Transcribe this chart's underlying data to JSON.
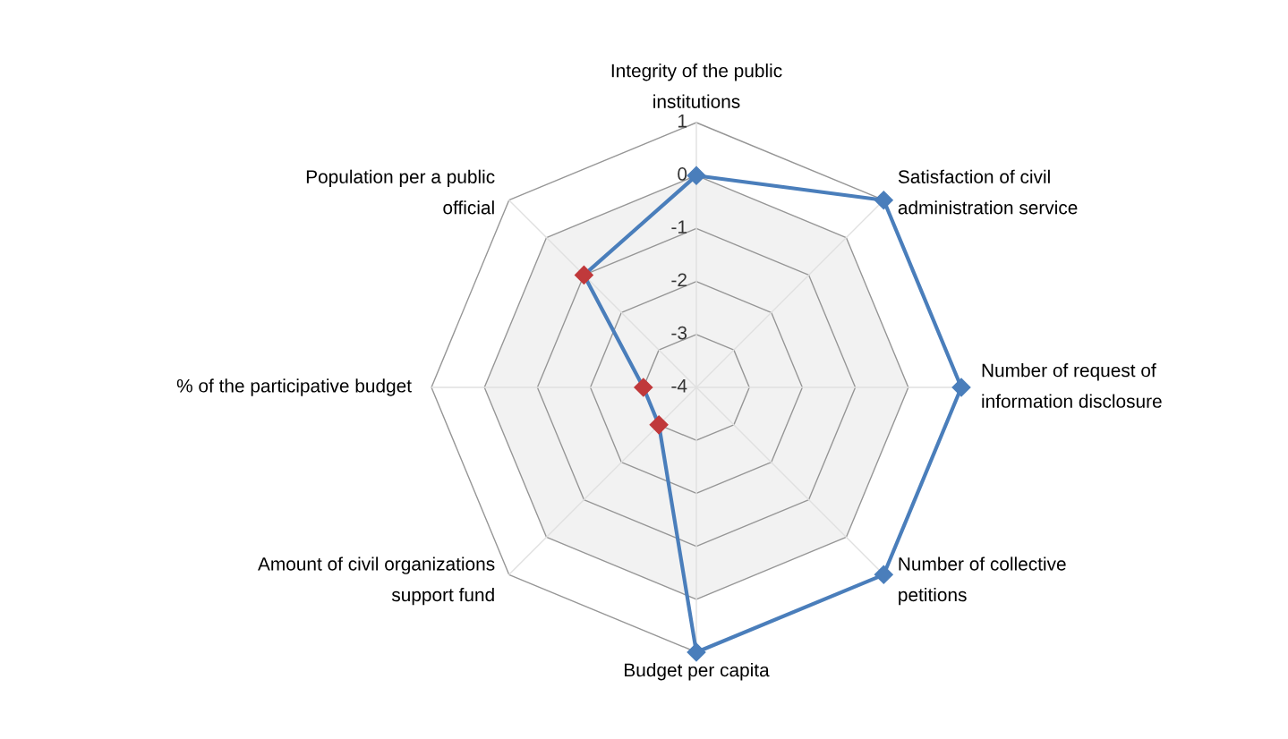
{
  "chart_data": {
    "type": "radar",
    "categories": [
      "Integrity of the public\ninstitutions",
      "Satisfaction of civil\nadministration service",
      "Number of request of\ninformation disclosure",
      "Number of collective\npetitions",
      "Budget per capita",
      "Amount of civil organizations\nsupport fund",
      "% of the participative budget",
      "Population per a public\nofficial"
    ],
    "series": [
      {
        "color": "#4a7ebb",
        "values": [
          0,
          1,
          1,
          1,
          1,
          -3,
          -3,
          -1
        ],
        "colors": [
          "#4a7ebb",
          "#4a7ebb",
          "#4a7ebb",
          "#4a7ebb",
          "#4a7ebb",
          "#c0393b",
          "#c0393b",
          "#c0393b"
        ]
      }
    ],
    "ylim": [
      -4,
      1
    ],
    "yticks": [
      1,
      0,
      -1,
      -2,
      -3,
      -4
    ],
    "marker": "diamond",
    "line_style": "solid"
  }
}
